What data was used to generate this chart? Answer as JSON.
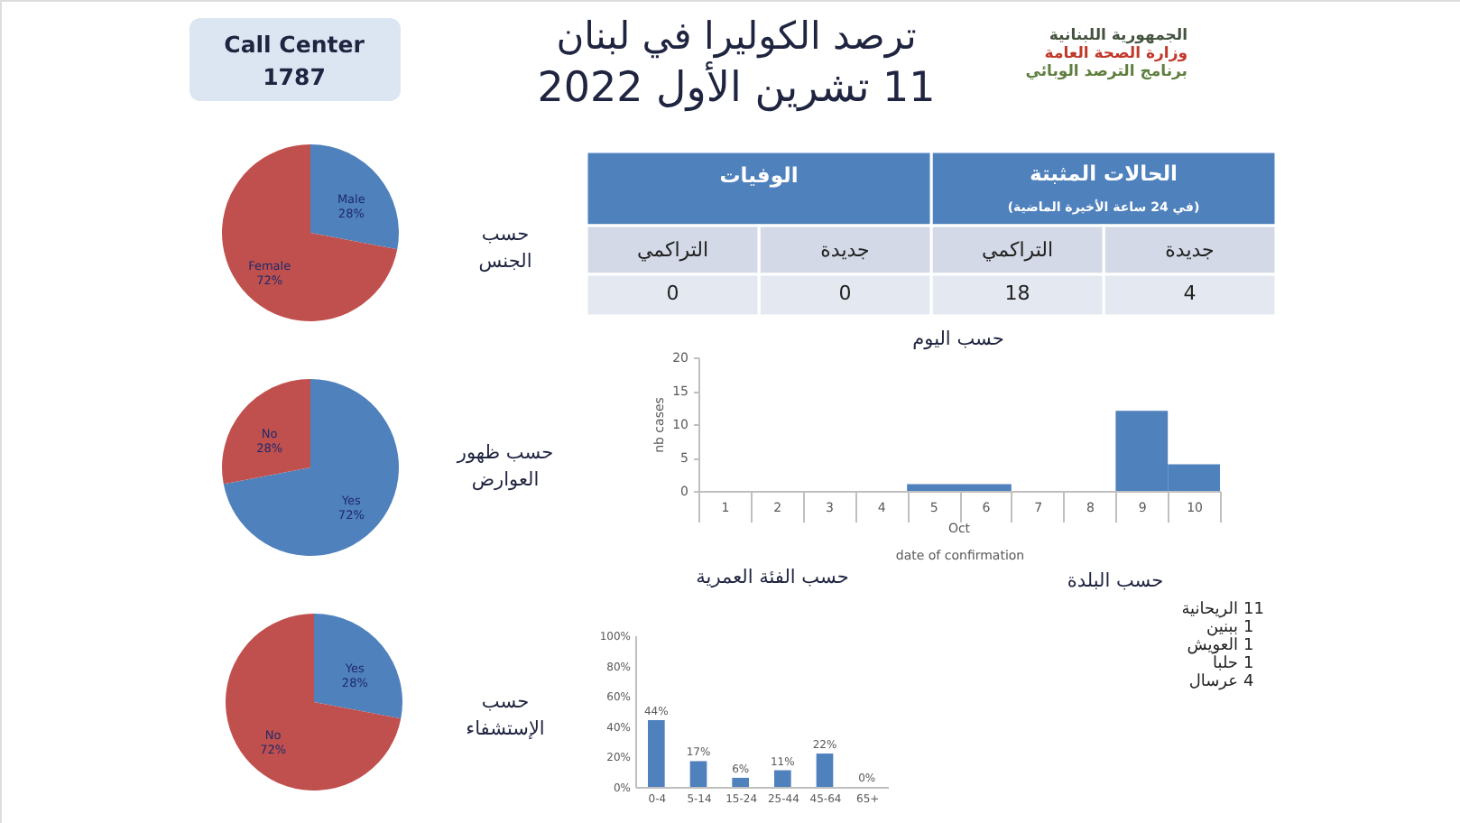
{
  "chart_data": [
    {
      "type": "other",
      "title": "ترصد الكوليرا في لبنان",
      "subtitle": "11 تشرين الأول 2022",
      "annotations": [
        "الجمهورية اللبنانية",
        "وزارة الصحة العامة",
        "برنامج الترصد الوبائي"
      ]
    },
    {
      "type": "other",
      "annotations": [
        "Call Center",
        "1787"
      ]
    },
    {
      "type": "pie",
      "title": "حسب الجنس",
      "categories": [
        "Male",
        "Female"
      ],
      "values": [
        28,
        72
      ],
      "colors": [
        "#4f81bd",
        "#c0504d"
      ],
      "value_labels": [
        "28%",
        "72%"
      ]
    },
    {
      "type": "pie",
      "title": "حسب ظهور العوارض",
      "categories": [
        "Yes",
        "No"
      ],
      "values": [
        72,
        28
      ],
      "colors": [
        "#4f81bd",
        "#c0504d"
      ],
      "value_labels": [
        "72%",
        "28%"
      ]
    },
    {
      "type": "pie",
      "title": "حسب الإستشفاء",
      "categories": [
        "Yes",
        "No"
      ],
      "values": [
        28,
        72
      ],
      "colors": [
        "#4f81bd",
        "#c0504d"
      ],
      "value_labels": [
        "28%",
        "72%"
      ]
    },
    {
      "type": "other",
      "categories": [
        "جديدة",
        "التراكمي",
        "جديدة",
        "التراكمي"
      ],
      "values": [
        4,
        18,
        0,
        0
      ],
      "data_labels": true,
      "annotations": [
        "الحالات المثبتة",
        "(في 24 ساعة الأخيرة الماضية)",
        "الوفيات"
      ]
    },
    {
      "type": "bar",
      "title": "حسب اليوم",
      "categories": [
        "1",
        "2",
        "3",
        "4",
        "5",
        "6",
        "7",
        "8",
        "9",
        "10"
      ],
      "values": [
        0,
        0,
        0,
        0,
        1,
        1,
        0,
        0,
        12,
        4
      ],
      "color": "#4f81bd",
      "ylim": [
        0,
        20
      ],
      "yticks": [
        0,
        5,
        10,
        15,
        20
      ],
      "ylabel": "nb cases",
      "xlabel": "date of confirmation",
      "annotations": [
        "Oct"
      ]
    },
    {
      "type": "bar",
      "title": "حسب الفئة العمرية",
      "categories": [
        "0-4",
        "5-14",
        "15-24",
        "25-44",
        "45-64",
        "65+"
      ],
      "values": [
        44,
        17,
        6,
        11,
        22,
        0
      ],
      "color": "#4f81bd",
      "value_labels": [
        "44%",
        "17%",
        "6%",
        "11%",
        "22%",
        "0%"
      ],
      "ylim": [
        0,
        100
      ],
      "yticks": [
        {
          "value": 0,
          "label": "0%"
        },
        {
          "value": 20,
          "label": "20%"
        },
        {
          "value": 40,
          "label": "40%"
        },
        {
          "value": 60,
          "label": "60%"
        },
        {
          "value": 80,
          "label": "80%"
        },
        {
          "value": 100,
          "label": "100%"
        }
      ]
    },
    {
      "type": "other",
      "title": "حسب البلدة",
      "categories": [
        "الريحانية",
        "ببنين",
        "العويش",
        "حلبا",
        "عرسال"
      ],
      "values": [
        11,
        1,
        1,
        1,
        4
      ],
      "data_labels": true
    }
  ]
}
